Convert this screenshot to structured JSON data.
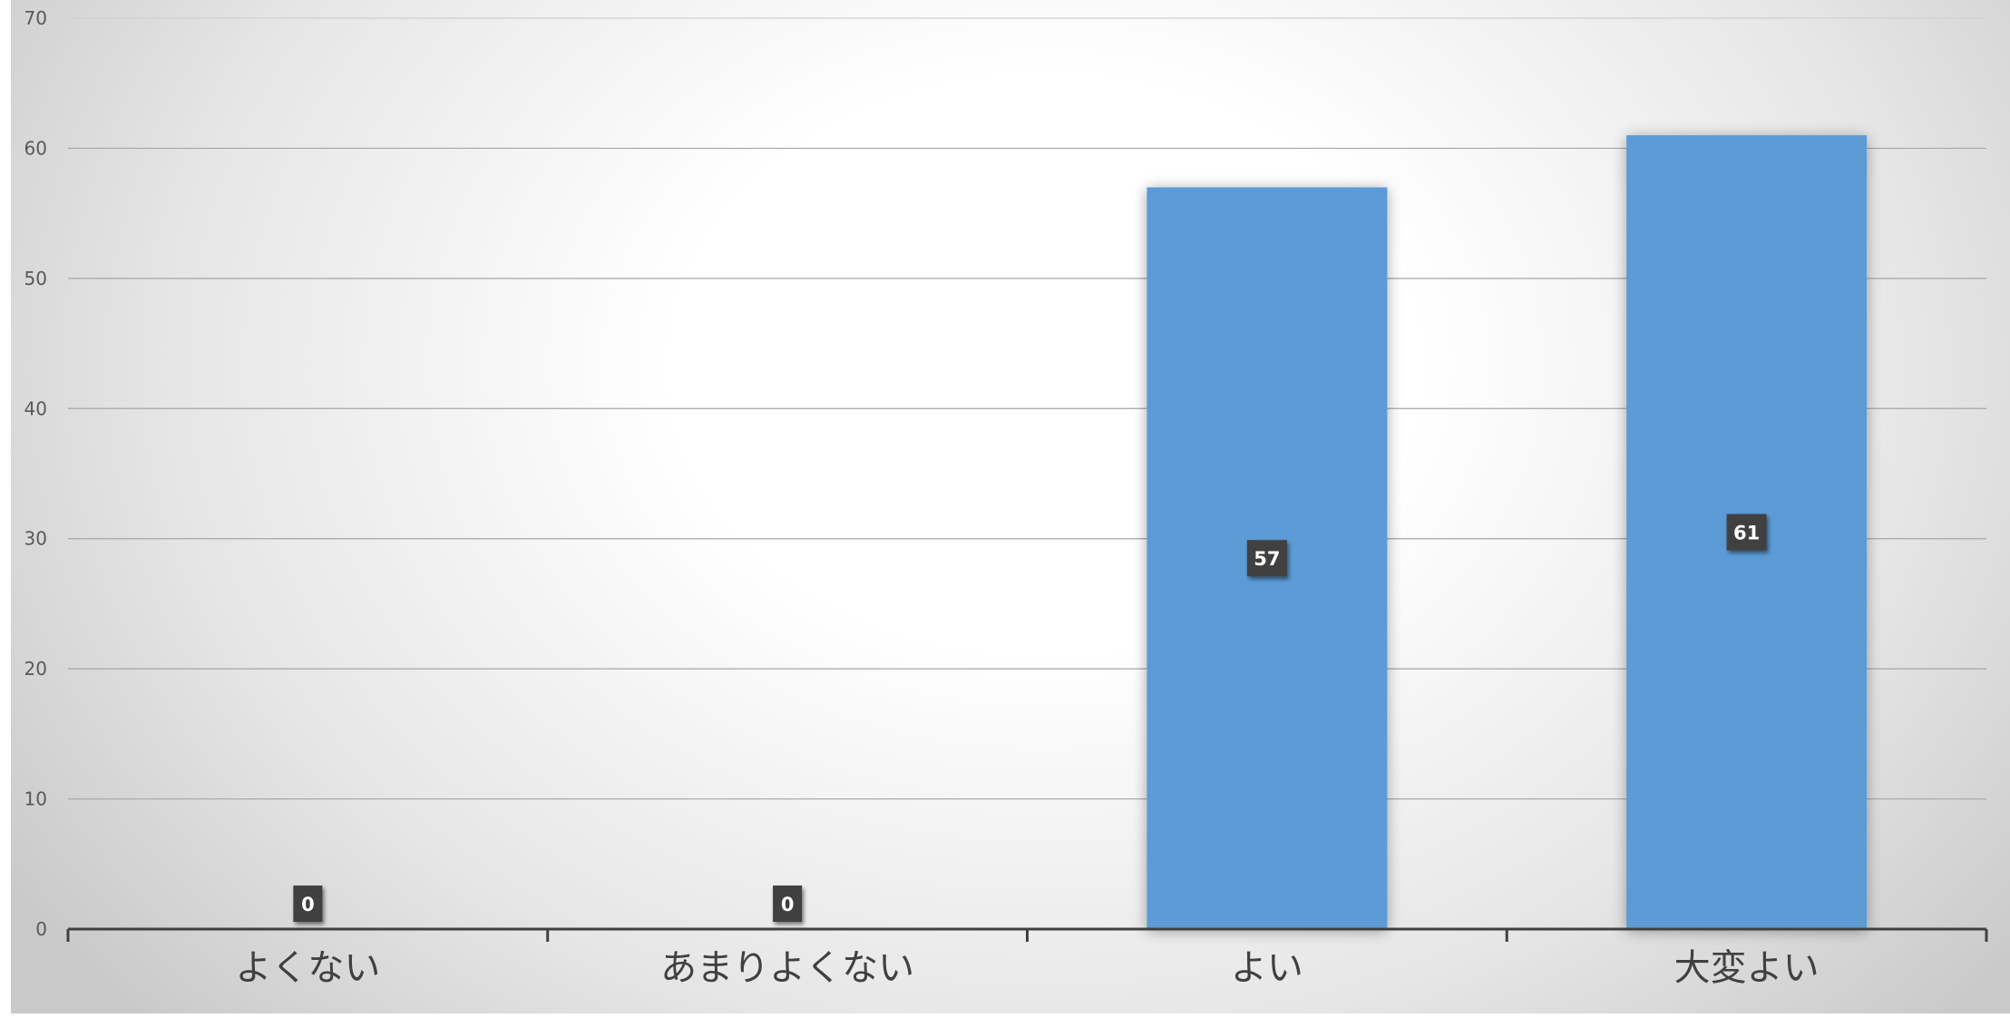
{
  "chart_data": {
    "type": "bar",
    "categories": [
      "よくない",
      "あまりよくない",
      "よい",
      "大変よい"
    ],
    "values": [
      0,
      0,
      57,
      61
    ],
    "data_labels": [
      "0",
      "0",
      "57",
      "61"
    ],
    "title": "",
    "xlabel": "",
    "ylabel": "",
    "ylim": [
      0,
      70
    ],
    "yticks": [
      0,
      10,
      20,
      30,
      40,
      50,
      60,
      70
    ],
    "grid": true,
    "legend": "none",
    "colors": {
      "bar": "#5b9bd5",
      "label_box": "#3f3f3f",
      "grid": "#a6a6a6",
      "axis": "#404040"
    }
  }
}
